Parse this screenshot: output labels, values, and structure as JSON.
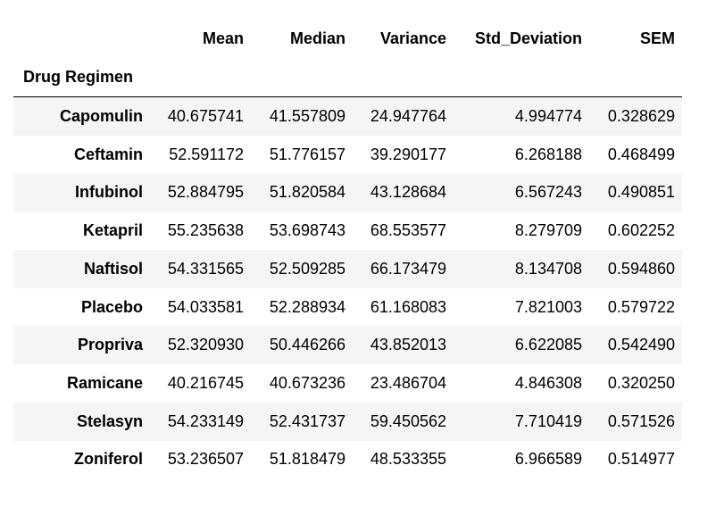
{
  "table": {
    "columns": [
      "Mean",
      "Median",
      "Variance",
      "Std_Deviation",
      "SEM"
    ],
    "index_name": "Drug Regimen",
    "rows": [
      [
        "Capomulin",
        "40.675741",
        "41.557809",
        "24.947764",
        "4.994774",
        "0.328629"
      ],
      [
        "Ceftamin",
        "52.591172",
        "51.776157",
        "39.290177",
        "6.268188",
        "0.468499"
      ],
      [
        "Infubinol",
        "52.884795",
        "51.820584",
        "43.128684",
        "6.567243",
        "0.490851"
      ],
      [
        "Ketapril",
        "55.235638",
        "53.698743",
        "68.553577",
        "8.279709",
        "0.602252"
      ],
      [
        "Naftisol",
        "54.331565",
        "52.509285",
        "66.173479",
        "8.134708",
        "0.594860"
      ],
      [
        "Placebo",
        "54.033581",
        "52.288934",
        "61.168083",
        "7.821003",
        "0.579722"
      ],
      [
        "Propriva",
        "52.320930",
        "50.446266",
        "43.852013",
        "6.622085",
        "0.542490"
      ],
      [
        "Ramicane",
        "40.216745",
        "40.673236",
        "23.486704",
        "4.846308",
        "0.320250"
      ],
      [
        "Stelasyn",
        "54.233149",
        "52.431737",
        "59.450562",
        "7.710419",
        "0.571526"
      ],
      [
        "Zoniferol",
        "53.236507",
        "51.818479",
        "48.533355",
        "6.966589",
        "0.514977"
      ]
    ]
  }
}
